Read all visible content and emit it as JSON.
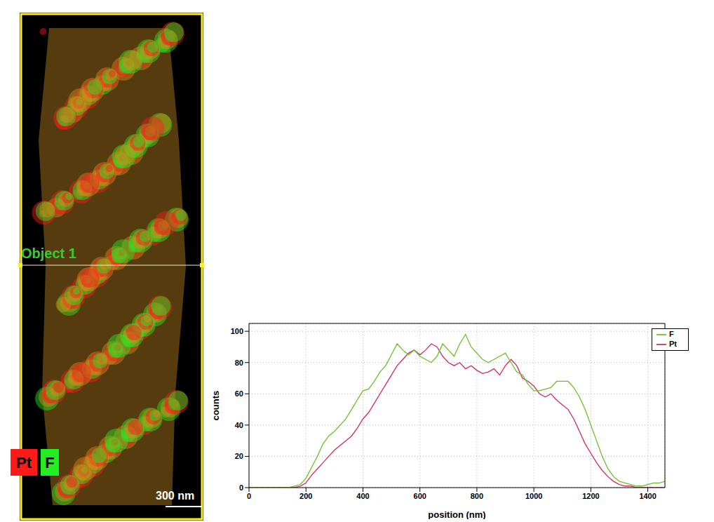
{
  "image": {
    "object_label": "Object 1",
    "channels": [
      {
        "name": "Pt",
        "color": "#ff1a1a"
      },
      {
        "name": "F",
        "color": "#22ee22"
      }
    ],
    "scale_bar": "300 nm"
  },
  "chart_data": {
    "type": "line",
    "xlabel": "position (nm)",
    "ylabel": "counts",
    "x": [
      0,
      20,
      40,
      60,
      80,
      100,
      120,
      140,
      160,
      180,
      200,
      220,
      240,
      260,
      280,
      300,
      320,
      340,
      360,
      380,
      400,
      420,
      440,
      460,
      480,
      500,
      520,
      540,
      560,
      580,
      600,
      620,
      640,
      660,
      680,
      700,
      720,
      740,
      760,
      780,
      800,
      820,
      840,
      860,
      880,
      900,
      920,
      940,
      960,
      980,
      1000,
      1020,
      1040,
      1060,
      1080,
      1100,
      1120,
      1140,
      1160,
      1180,
      1200,
      1220,
      1240,
      1260,
      1280,
      1300,
      1320,
      1340,
      1360,
      1380,
      1400,
      1420,
      1440,
      1460
    ],
    "series": [
      {
        "name": "Pt",
        "color": "#d42a5b",
        "values": [
          0,
          0,
          0,
          0,
          0,
          0,
          0,
          0,
          0,
          1,
          3,
          8,
          12,
          16,
          20,
          24,
          27,
          30,
          33,
          38,
          44,
          48,
          54,
          60,
          66,
          72,
          78,
          82,
          86,
          88,
          85,
          88,
          92,
          90,
          84,
          80,
          78,
          80,
          76,
          78,
          75,
          73,
          74,
          76,
          72,
          78,
          82,
          78,
          70,
          68,
          65,
          60,
          58,
          60,
          56,
          53,
          50,
          44,
          36,
          28,
          22,
          16,
          11,
          7,
          4,
          2,
          1,
          1,
          0,
          0,
          0,
          0,
          0,
          0
        ]
      },
      {
        "name": "F",
        "color": "#6cbf2a",
        "values": [
          0,
          0,
          0,
          0,
          0,
          0,
          0,
          0,
          1,
          2,
          6,
          13,
          20,
          28,
          33,
          36,
          40,
          44,
          50,
          56,
          62,
          63,
          68,
          74,
          78,
          85,
          92,
          88,
          85,
          88,
          84,
          82,
          80,
          84,
          92,
          88,
          84,
          92,
          98,
          90,
          86,
          82,
          80,
          82,
          84,
          86,
          80,
          74,
          72,
          66,
          62,
          62,
          63,
          64,
          68,
          68,
          68,
          64,
          58,
          50,
          40,
          30,
          20,
          12,
          7,
          4,
          3,
          2,
          1,
          1,
          2,
          3,
          3,
          4
        ]
      }
    ],
    "xlim": [
      0,
      1460
    ],
    "ylim": [
      0,
      105
    ],
    "xticks": [
      0,
      200,
      400,
      600,
      800,
      1000,
      1200,
      1400
    ],
    "yticks": [
      0,
      20,
      40,
      60,
      80,
      100
    ],
    "grid": true,
    "legend": "upper right"
  }
}
